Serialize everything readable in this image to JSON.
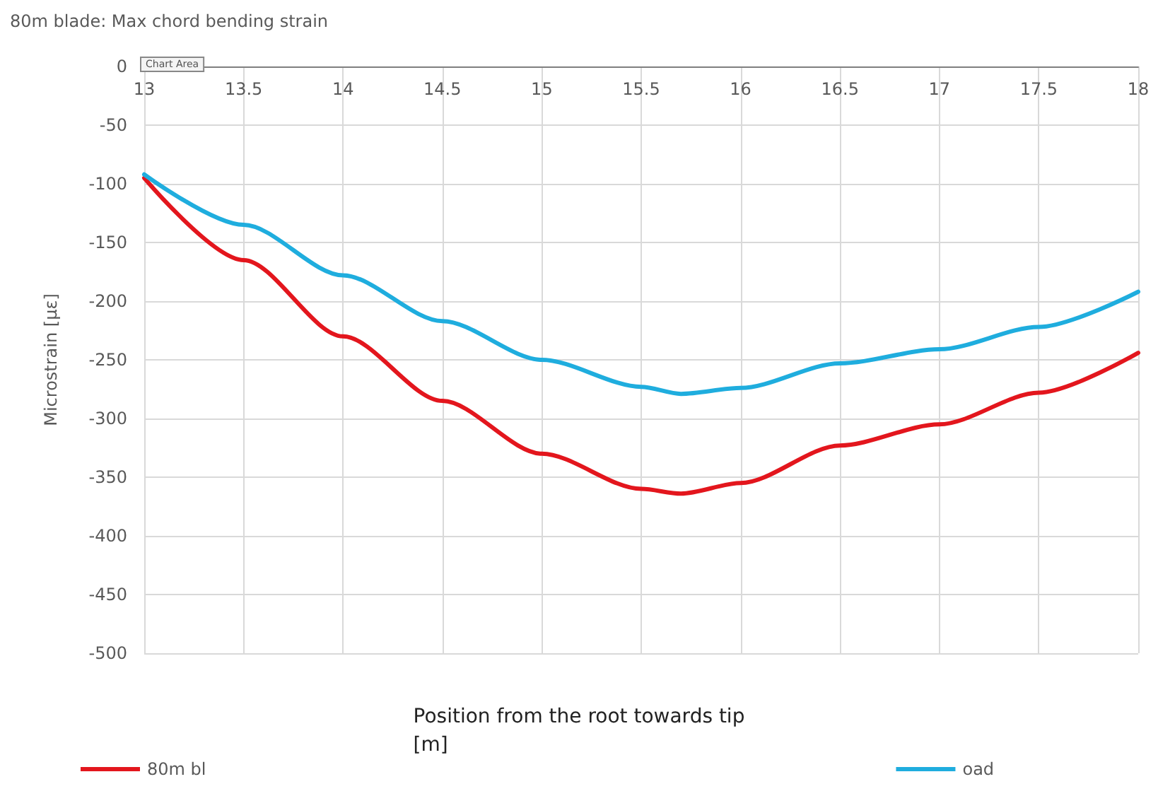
{
  "chart_data": {
    "type": "line",
    "title": "80m blade: Max chord bending strain",
    "xlabel": "Position from the root towards tip\n[m]",
    "ylabel": "Microstrain [με]",
    "annotations": [
      "Chart Area"
    ],
    "x": [
      13,
      13.5,
      14,
      14.5,
      15,
      15.5,
      15.7,
      16,
      16.5,
      17,
      17.5,
      18
    ],
    "series": [
      {
        "name": "80m bl",
        "color": "#e3161d",
        "values": [
          -95,
          -165,
          -230,
          -285,
          -330,
          -360,
          -364,
          -355,
          -323,
          -305,
          -278,
          -244
        ]
      },
      {
        "name": "oad",
        "color": "#1fadde",
        "values": [
          -92,
          -135,
          -178,
          -217,
          -250,
          -273,
          -279,
          -274,
          -253,
          -241,
          -222,
          -192
        ]
      }
    ],
    "xlim": [
      13,
      18
    ],
    "xticks": [
      13,
      13.5,
      14,
      14.5,
      15,
      15.5,
      16,
      16.5,
      17,
      17.5,
      18
    ],
    "ylim": [
      -500,
      0
    ],
    "yticks": [
      -500,
      -450,
      -400,
      -350,
      -300,
      -250,
      -200,
      -150,
      -100,
      -50,
      0
    ],
    "grid": true,
    "legend": "bottom",
    "marker": "none",
    "line_style": "solid"
  }
}
